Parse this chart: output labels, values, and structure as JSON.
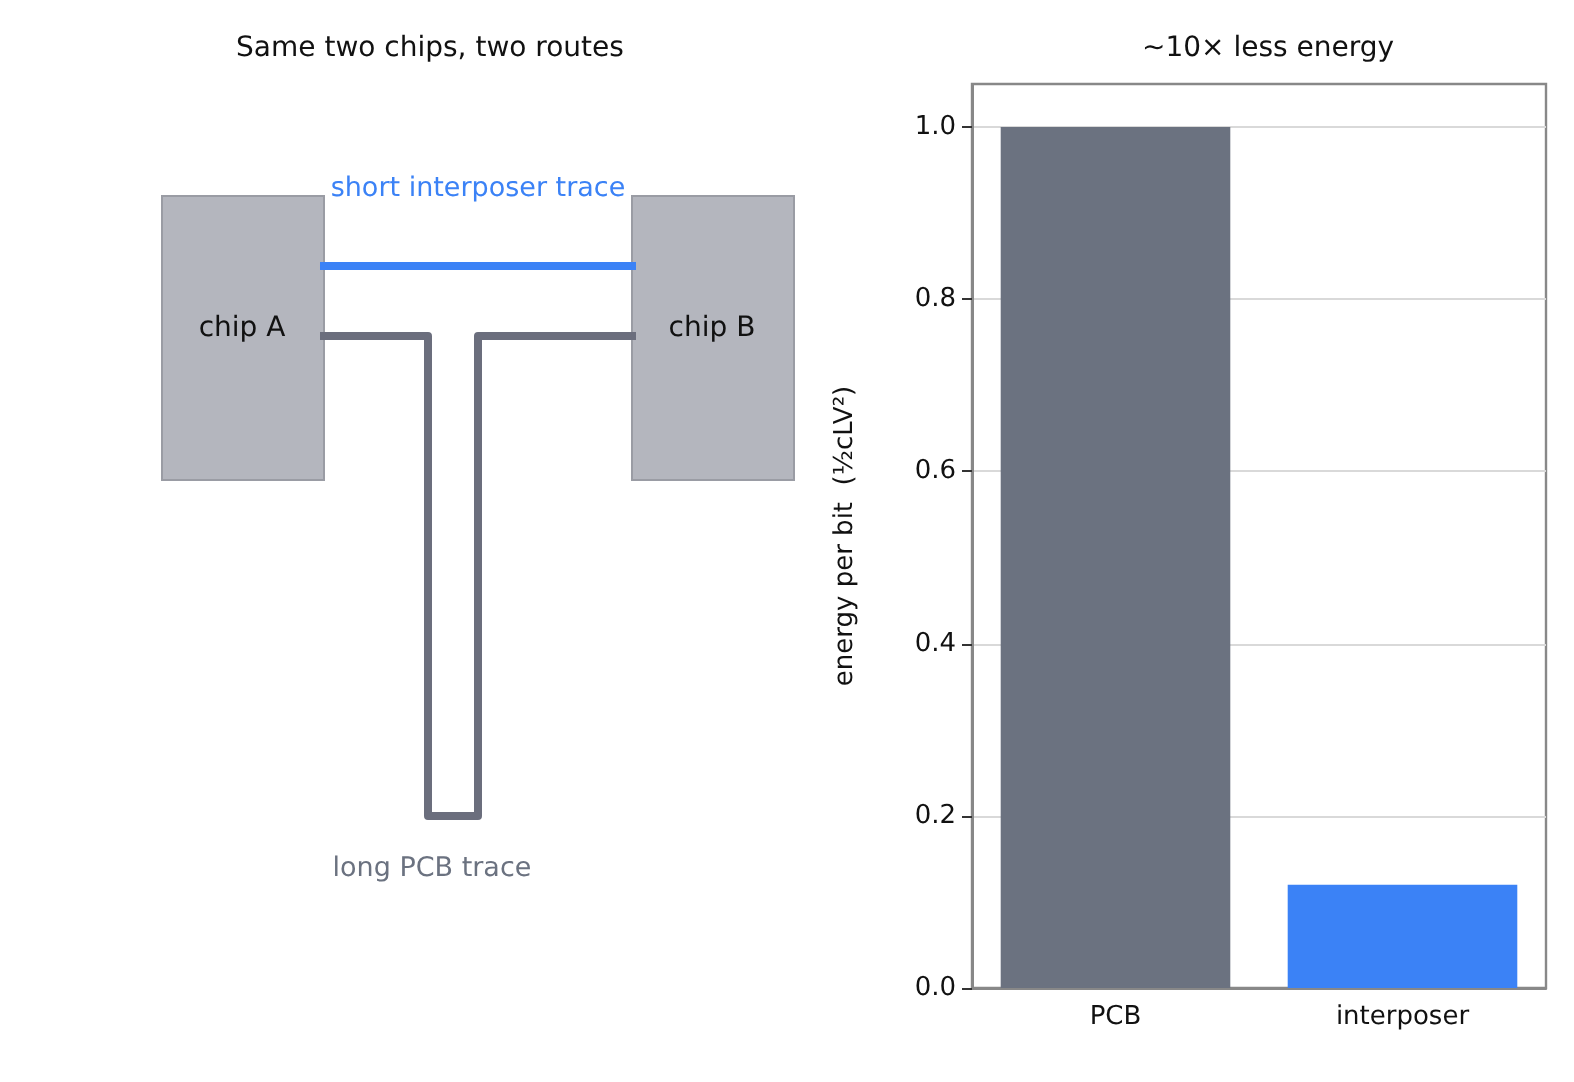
{
  "chart_data": [
    {
      "type": "other",
      "title": "Same two chips, two routes",
      "annotations": [
        "chip A",
        "chip B",
        "short interposer trace",
        "long PCB trace"
      ]
    },
    {
      "type": "bar",
      "title": "~10× less energy",
      "ylabel": "energy per bit  (½cLV²)",
      "categories": [
        "PCB",
        "interposer"
      ],
      "values": [
        1.0,
        0.12
      ],
      "colors": [
        "#6b7280",
        "#3b82f6"
      ],
      "ylim": [
        0,
        1.05
      ],
      "yticks": [
        {
          "value": 0,
          "label": "0.0"
        },
        {
          "value": 0.2,
          "label": "0.2"
        },
        {
          "value": 0.4,
          "label": "0.4"
        },
        {
          "value": 0.6,
          "label": "0.6"
        },
        {
          "value": 0.8,
          "label": "0.8"
        },
        {
          "value": 1.0,
          "label": "1.0"
        }
      ],
      "grid": "y"
    }
  ]
}
